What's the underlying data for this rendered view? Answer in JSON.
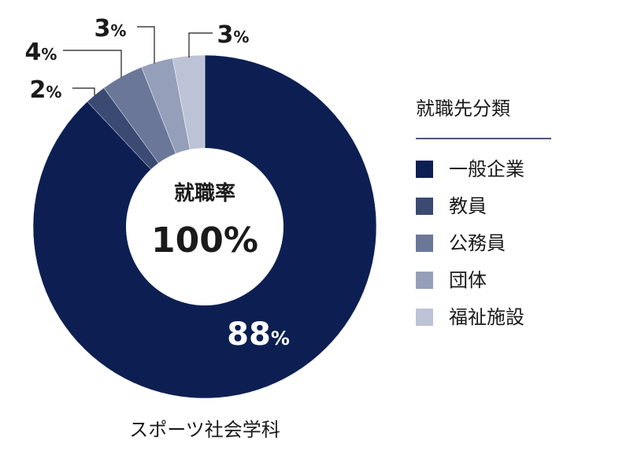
{
  "chart_data": {
    "type": "pie",
    "variant": "donut",
    "title": "スポーツ社会学科",
    "center_label": "就職率",
    "center_value": "100%",
    "legend_title": "就職先分類",
    "legend_position": "right",
    "categories": [
      "一般企業",
      "教員",
      "公務員",
      "団体",
      "福祉施設"
    ],
    "values": [
      88,
      2,
      4,
      3,
      3
    ],
    "value_labels": [
      "88%",
      "2%",
      "4%",
      "3%",
      "3%"
    ],
    "colors": [
      "#0d1f52",
      "#3b4a72",
      "#6b7799",
      "#959fba",
      "#bcc3d6"
    ]
  }
}
